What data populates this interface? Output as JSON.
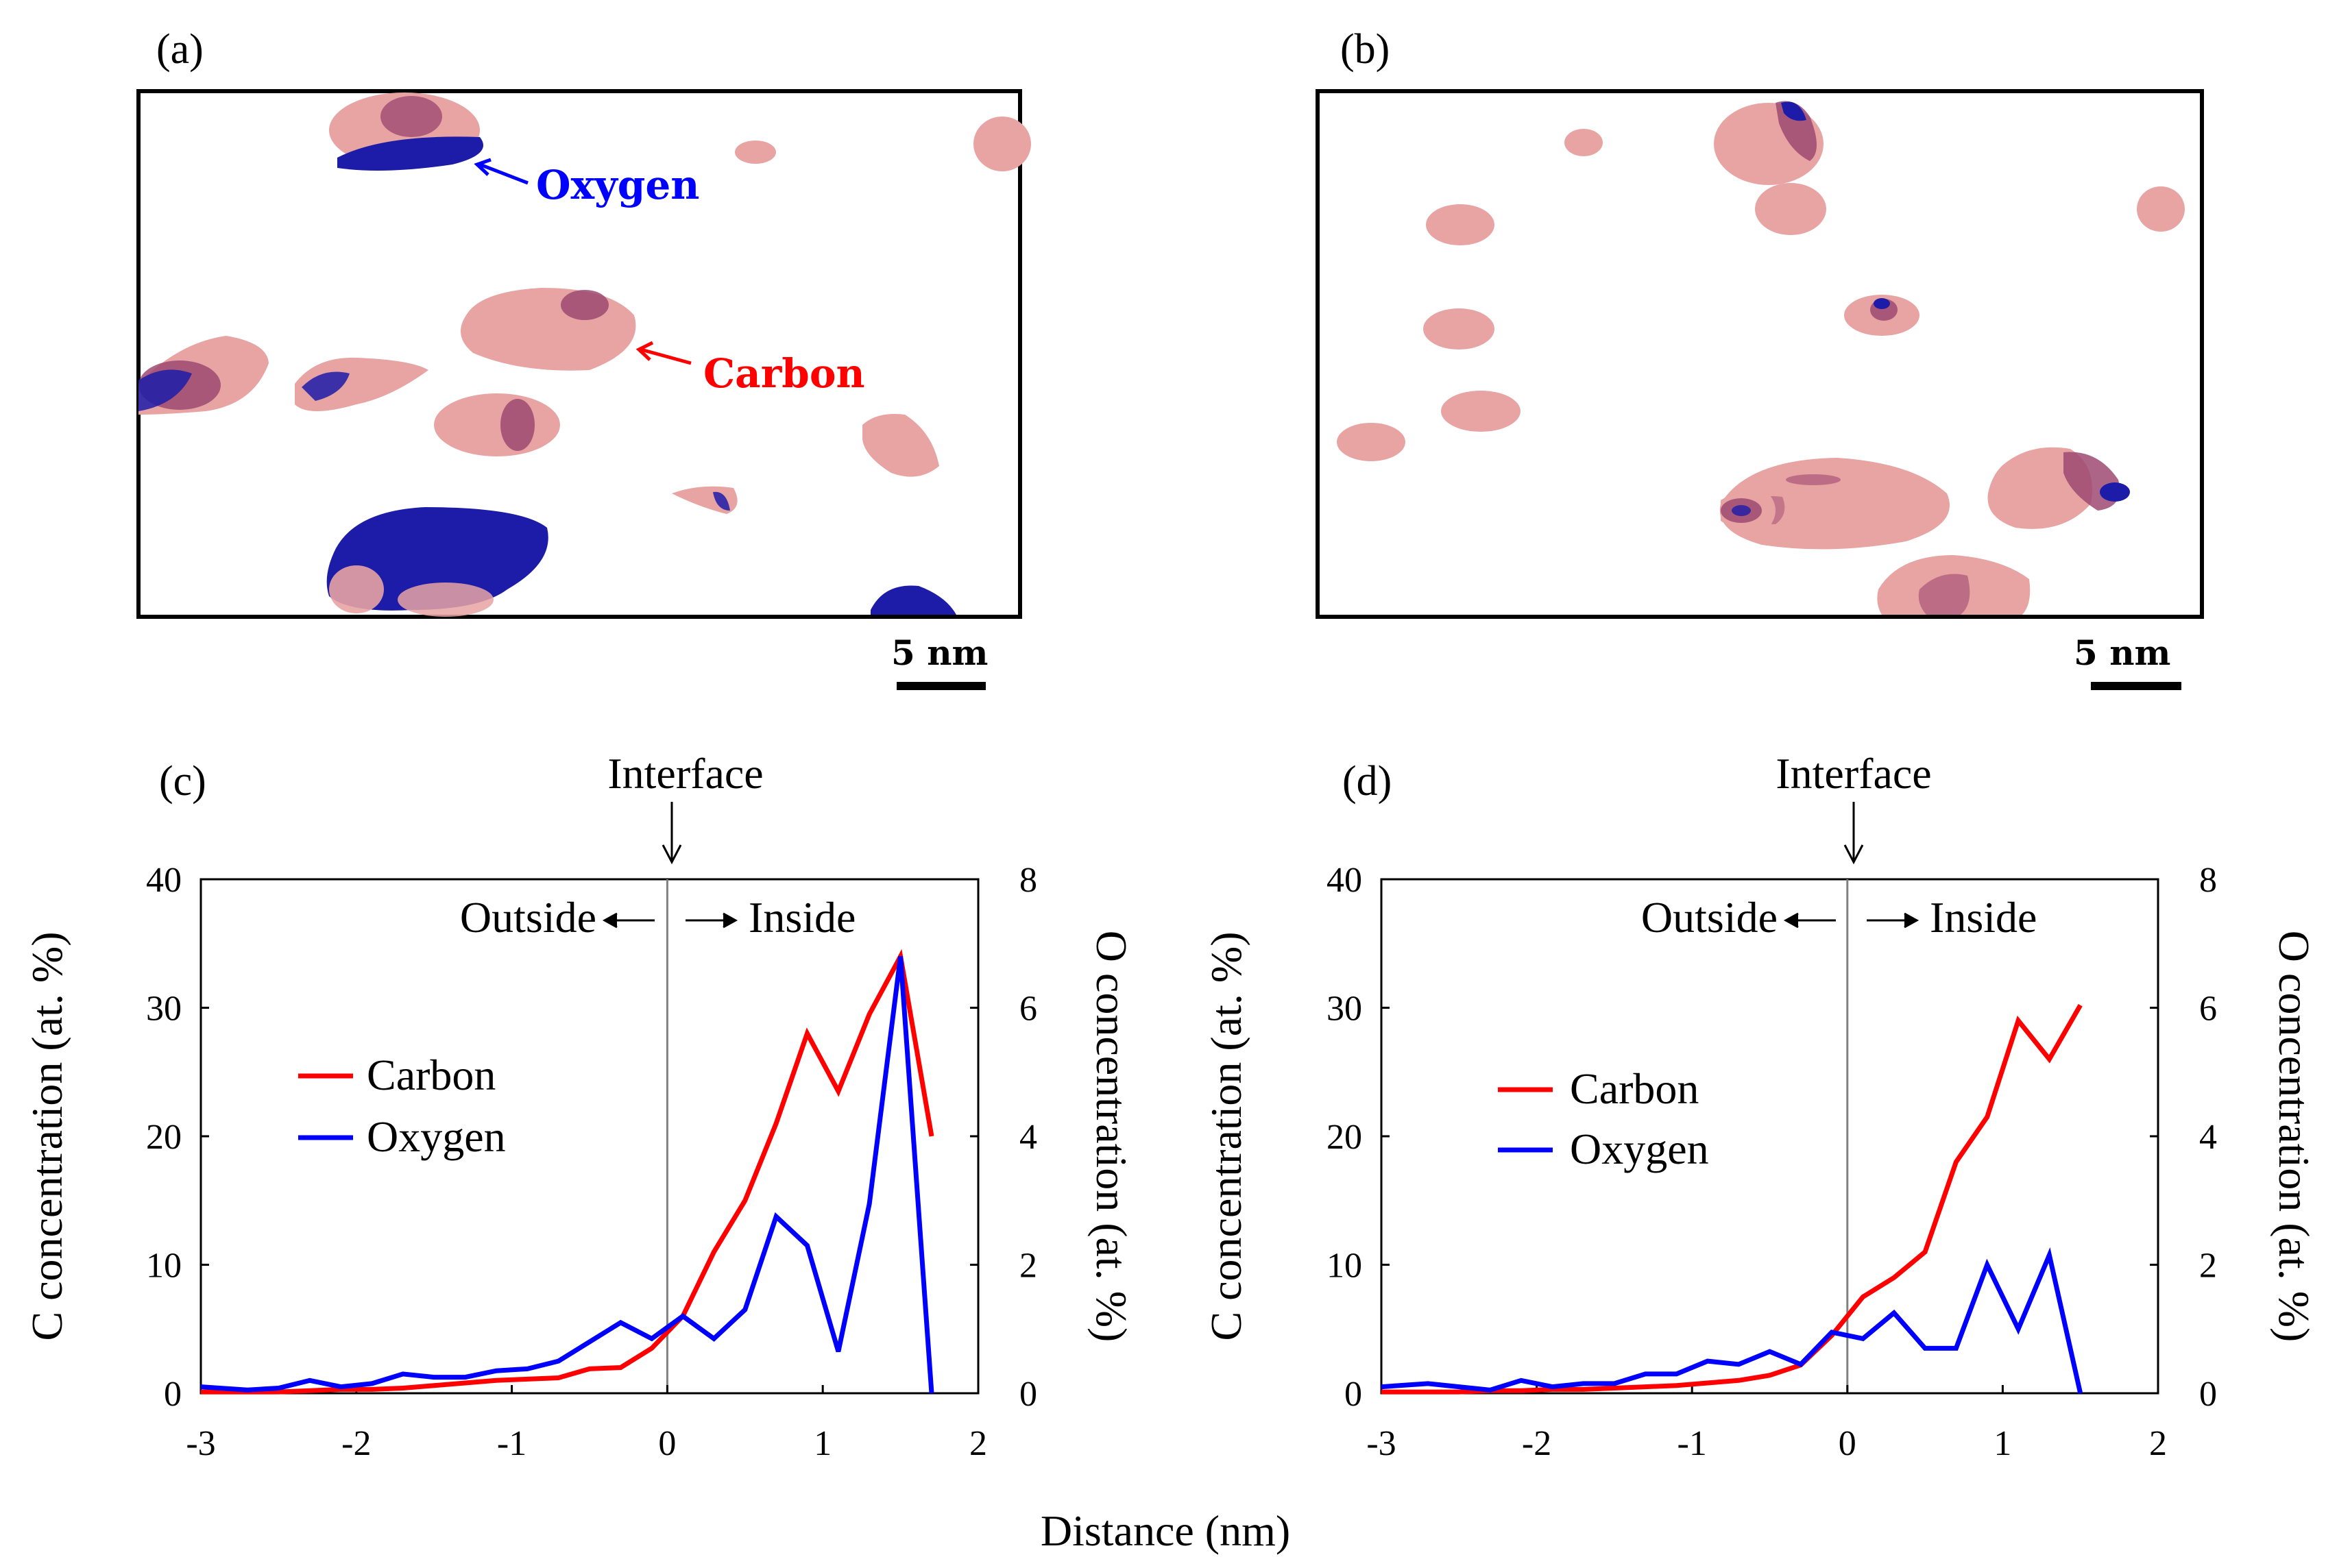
{
  "panels": {
    "a": {
      "label": "(a)",
      "scale_bar": "5 nm",
      "annotations": {
        "oxygen": "Oxygen",
        "carbon": "Carbon"
      }
    },
    "b": {
      "label": "(b)",
      "scale_bar": "5 nm"
    },
    "c": {
      "label": "(c)"
    },
    "d": {
      "label": "(d)"
    }
  },
  "colors": {
    "carbon": "#ff0000",
    "oxygen": "#0000ff",
    "precip_pink": "#e8a3a3",
    "precip_core": "#9e4a72",
    "precip_blue": "#1c1ca8"
  },
  "shared": {
    "xlabel": "Distance (nm)",
    "ylabel_left": "C concentration (at. %)",
    "ylabel_right": "O concentration (at. %)",
    "interface_label": "Interface",
    "outside_label": "Outside",
    "inside_label": "Inside",
    "x_ticks": [
      "-3",
      "-2",
      "-1",
      "0",
      "1",
      "2"
    ],
    "y_left_ticks": [
      "0",
      "10",
      "20",
      "30",
      "40"
    ],
    "y_right_ticks": [
      "0",
      "2",
      "4",
      "6",
      "8"
    ]
  },
  "chart_data": [
    {
      "panel": "c",
      "type": "line",
      "xlim": [
        -3,
        2
      ],
      "ylim_left": [
        0,
        40
      ],
      "ylim_right": [
        0,
        8
      ],
      "series": [
        {
          "name": "Carbon",
          "axis": "left",
          "x": [
            -3,
            -2.7,
            -2.5,
            -2.3,
            -2.1,
            -1.9,
            -1.7,
            -1.5,
            -1.3,
            -1.1,
            -0.9,
            -0.7,
            -0.5,
            -0.3,
            -0.1,
            0.1,
            0.3,
            0.5,
            0.7,
            0.9,
            1.1,
            1.3,
            1.5,
            1.7
          ],
          "values": [
            0.1,
            0.1,
            0.1,
            0.2,
            0.3,
            0.3,
            0.4,
            0.6,
            0.8,
            1.0,
            1.1,
            1.2,
            1.9,
            2.0,
            3.5,
            6.0,
            11.0,
            15.0,
            21.0,
            28.0,
            23.5,
            29.5,
            34.0,
            20.0
          ]
        },
        {
          "name": "Oxygen",
          "axis": "right",
          "x": [
            -3,
            -2.7,
            -2.5,
            -2.3,
            -2.1,
            -1.9,
            -1.7,
            -1.5,
            -1.3,
            -1.1,
            -0.9,
            -0.7,
            -0.5,
            -0.3,
            -0.1,
            0.1,
            0.3,
            0.5,
            0.7,
            0.9,
            1.1,
            1.3,
            1.5,
            1.7
          ],
          "values": [
            0.1,
            0.05,
            0.08,
            0.2,
            0.1,
            0.15,
            0.3,
            0.25,
            0.25,
            0.35,
            0.38,
            0.5,
            0.8,
            1.1,
            0.85,
            1.2,
            0.85,
            1.3,
            2.75,
            2.3,
            0.65,
            2.95,
            6.8,
            0.0
          ]
        }
      ]
    },
    {
      "panel": "d",
      "type": "line",
      "xlim": [
        -3,
        2
      ],
      "ylim_left": [
        0,
        40
      ],
      "ylim_right": [
        0,
        8
      ],
      "series": [
        {
          "name": "Carbon",
          "axis": "left",
          "x": [
            -3,
            -2.7,
            -2.5,
            -2.3,
            -2.1,
            -1.9,
            -1.7,
            -1.5,
            -1.3,
            -1.1,
            -0.9,
            -0.7,
            -0.5,
            -0.3,
            -0.1,
            0.1,
            0.3,
            0.5,
            0.7,
            0.9,
            1.1,
            1.3,
            1.5
          ],
          "values": [
            0.1,
            0.1,
            0.1,
            0.2,
            0.2,
            0.3,
            0.3,
            0.4,
            0.5,
            0.6,
            0.8,
            1.0,
            1.4,
            2.2,
            4.5,
            7.5,
            9.0,
            11.0,
            18.0,
            21.5,
            29.0,
            26.0,
            30.2
          ]
        },
        {
          "name": "Oxygen",
          "axis": "right",
          "x": [
            -3,
            -2.7,
            -2.5,
            -2.3,
            -2.1,
            -1.9,
            -1.7,
            -1.5,
            -1.3,
            -1.1,
            -0.9,
            -0.7,
            -0.5,
            -0.3,
            -0.1,
            0.1,
            0.3,
            0.5,
            0.7,
            0.9,
            1.1,
            1.3,
            1.5
          ],
          "values": [
            0.1,
            0.15,
            0.1,
            0.05,
            0.2,
            0.1,
            0.15,
            0.15,
            0.3,
            0.3,
            0.5,
            0.45,
            0.65,
            0.45,
            0.95,
            0.85,
            1.25,
            0.7,
            0.7,
            2.0,
            1.0,
            2.15,
            0.0
          ]
        }
      ]
    }
  ]
}
